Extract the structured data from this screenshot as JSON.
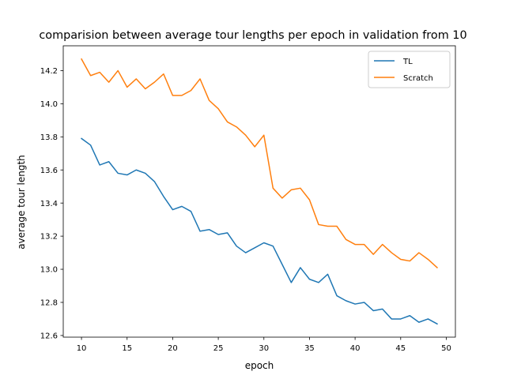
{
  "chart_data": {
    "type": "line",
    "title": "comparision between average tour lengths per epoch in validation from 10",
    "xlabel": "epoch",
    "ylabel": "average tour length",
    "xlim": [
      8,
      51
    ],
    "ylim": [
      12.59,
      14.35
    ],
    "xticks": [
      10,
      15,
      20,
      25,
      30,
      35,
      40,
      45,
      50
    ],
    "yticks": [
      12.6,
      12.8,
      13.0,
      13.2,
      13.4,
      13.6,
      13.8,
      14.0,
      14.2
    ],
    "grid": false,
    "legend_position": "top-right",
    "x": [
      10,
      11,
      12,
      13,
      14,
      15,
      16,
      17,
      18,
      19,
      20,
      21,
      22,
      23,
      24,
      25,
      26,
      27,
      28,
      29,
      30,
      31,
      32,
      33,
      34,
      35,
      36,
      37,
      38,
      39,
      40,
      41,
      42,
      43,
      44,
      45,
      46,
      47,
      48,
      49
    ],
    "series": [
      {
        "name": "TL",
        "color": "#1f77b4",
        "values": [
          13.79,
          13.75,
          13.63,
          13.65,
          13.58,
          13.57,
          13.6,
          13.58,
          13.53,
          13.44,
          13.36,
          13.38,
          13.35,
          13.23,
          13.24,
          13.21,
          13.22,
          13.14,
          13.1,
          13.13,
          13.16,
          13.14,
          13.03,
          12.92,
          13.01,
          12.94,
          12.92,
          12.97,
          12.84,
          12.81,
          12.79,
          12.8,
          12.75,
          12.76,
          12.7,
          12.7,
          12.72,
          12.68,
          12.7,
          12.67
        ]
      },
      {
        "name": "Scratch",
        "color": "#ff7f0e",
        "values": [
          14.27,
          14.17,
          14.19,
          14.13,
          14.2,
          14.1,
          14.15,
          14.09,
          14.13,
          14.18,
          14.05,
          14.05,
          14.08,
          14.15,
          14.02,
          13.97,
          13.89,
          13.86,
          13.81,
          13.74,
          13.81,
          13.49,
          13.43,
          13.48,
          13.49,
          13.42,
          13.27,
          13.26,
          13.26,
          13.18,
          13.15,
          13.15,
          13.09,
          13.15,
          13.1,
          13.06,
          13.05,
          13.1,
          13.06,
          13.01
        ]
      }
    ]
  }
}
